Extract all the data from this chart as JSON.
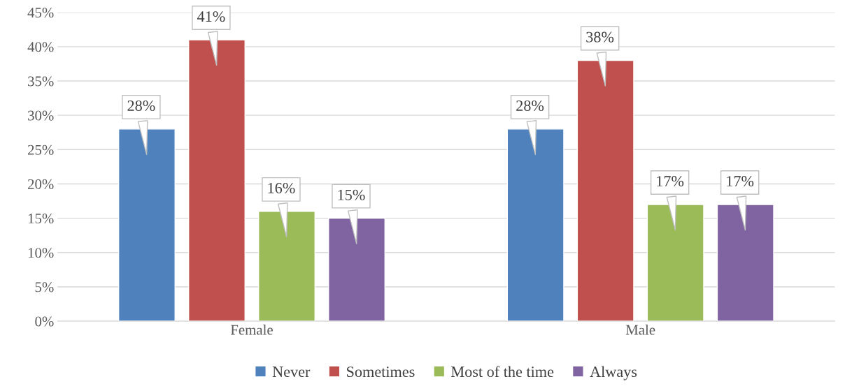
{
  "chart_data": {
    "type": "bar",
    "categories": [
      "Female",
      "Male"
    ],
    "series": [
      {
        "name": "Never",
        "color": "#4f81bd",
        "values": [
          28,
          28
        ],
        "value_labels": [
          "28%",
          "28%"
        ]
      },
      {
        "name": "Sometimes",
        "color": "#c0504d",
        "values": [
          41,
          38
        ],
        "value_labels": [
          "41%",
          "38%"
        ]
      },
      {
        "name": "Most of the time",
        "color": "#9bbb59",
        "values": [
          16,
          17
        ],
        "value_labels": [
          "16%",
          "17%"
        ]
      },
      {
        "name": "Always",
        "color": "#8064a2",
        "values": [
          15,
          17
        ],
        "value_labels": [
          "15%",
          "17%"
        ]
      }
    ],
    "ylim": [
      0,
      45
    ],
    "yticks": [
      {
        "value": 0,
        "label": "0%"
      },
      {
        "value": 5,
        "label": "5%"
      },
      {
        "value": 10,
        "label": "10%"
      },
      {
        "value": 15,
        "label": "15%"
      },
      {
        "value": 20,
        "label": "20%"
      },
      {
        "value": 25,
        "label": "25%"
      },
      {
        "value": 30,
        "label": "30%"
      },
      {
        "value": 35,
        "label": "35%"
      },
      {
        "value": 40,
        "label": "40%"
      },
      {
        "value": 45,
        "label": "45%"
      }
    ],
    "grid": "y",
    "legend": "bottom"
  }
}
